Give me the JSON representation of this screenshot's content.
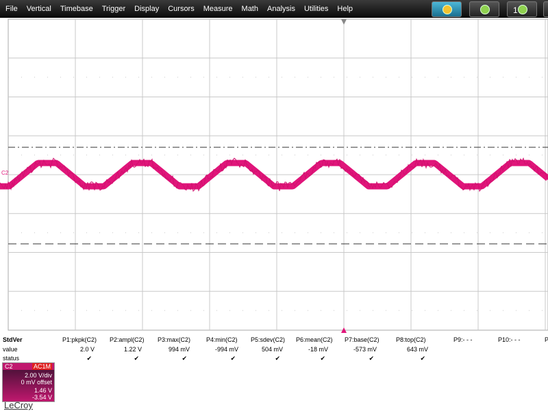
{
  "menu": [
    "File",
    "Vertical",
    "Timebase",
    "Trigger",
    "Display",
    "Cursors",
    "Measure",
    "Math",
    "Analysis",
    "Utilities",
    "Help"
  ],
  "toolbar_number": "1",
  "trace_label": "C2",
  "measurements": {
    "row_labels": [
      "StdVer",
      "value",
      "status"
    ],
    "columns": [
      {
        "name": "P1:pkpk(C2)",
        "value": "2.0 V",
        "status": "✔"
      },
      {
        "name": "P2:ampl(C2)",
        "value": "1.22 V",
        "status": "✔"
      },
      {
        "name": "P3:max(C2)",
        "value": "994 mV",
        "status": "✔"
      },
      {
        "name": "P4:min(C2)",
        "value": "-994 mV",
        "status": "✔"
      },
      {
        "name": "P5:sdev(C2)",
        "value": "504 mV",
        "status": "✔"
      },
      {
        "name": "P6:mean(C2)",
        "value": "-18 mV",
        "status": "✔"
      },
      {
        "name": "P7:base(C2)",
        "value": "-573 mV",
        "status": "✔"
      },
      {
        "name": "P8:top(C2)",
        "value": "643 mV",
        "status": "✔"
      },
      {
        "name": "P9:- - -"
      },
      {
        "name": "P10:- - -"
      },
      {
        "name": "P"
      }
    ]
  },
  "channel": {
    "name": "C2",
    "coupling": "AC1M",
    "scale": "2.00 V/div",
    "offset": "0 mV offset",
    "readout_top": "1.46 V",
    "readout_bottom": "-3.54 V"
  },
  "brand": "LeCroy"
}
